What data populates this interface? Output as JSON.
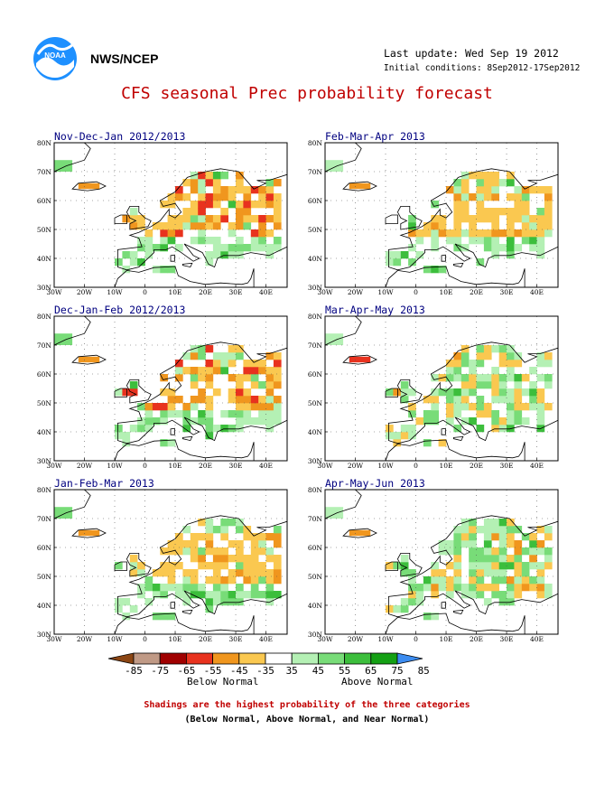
{
  "header": {
    "agency": "NWS/NCEP",
    "logo_icon": "noaa-logo-icon",
    "last_update": "Last update: Wed Sep 19 2012",
    "initial_conditions": "Initial conditions: 8Sep2012-17Sep2012"
  },
  "title": "CFS seasonal Prec probability forecast",
  "panels": [
    {
      "title": "Nov-Dec-Jan 2012/2013",
      "pattern": "strong-dry"
    },
    {
      "title": "Feb-Mar-Apr 2013",
      "pattern": "east-dry"
    },
    {
      "title": "Dec-Jan-Feb 2012/2013",
      "pattern": "strong-dry"
    },
    {
      "title": "Mar-Apr-May 2013",
      "pattern": "mixed-wet"
    },
    {
      "title": "Jan-Feb-Mar 2013",
      "pattern": "moderate-dry"
    },
    {
      "title": "Apr-May-Jun 2013",
      "pattern": "mixed-wet"
    }
  ],
  "axes": {
    "lon_labels": [
      "30W",
      "20W",
      "10W",
      "0",
      "10E",
      "20E",
      "30E",
      "40E"
    ],
    "lat_labels": [
      "30N",
      "40N",
      "50N",
      "60N",
      "70N",
      "80N"
    ]
  },
  "legend": {
    "labels": [
      "-85",
      "-75",
      "-65",
      "-55",
      "-45",
      "-35",
      "35",
      "45",
      "55",
      "65",
      "75",
      "85"
    ],
    "colors": [
      "#8b4513",
      "#c09a86",
      "#a00000",
      "#e8321e",
      "#f0961e",
      "#fac850",
      "#ffffff",
      "#b4f0b4",
      "#78dc78",
      "#3cbe3c",
      "#14a014",
      "#3c8cf0"
    ],
    "below_label": "Below Normal",
    "above_label": "Above Normal"
  },
  "notes": {
    "line1": "Shadings are the highest probability of the three categories",
    "line2": "(Below Normal, Above Normal, and Near Normal)"
  }
}
